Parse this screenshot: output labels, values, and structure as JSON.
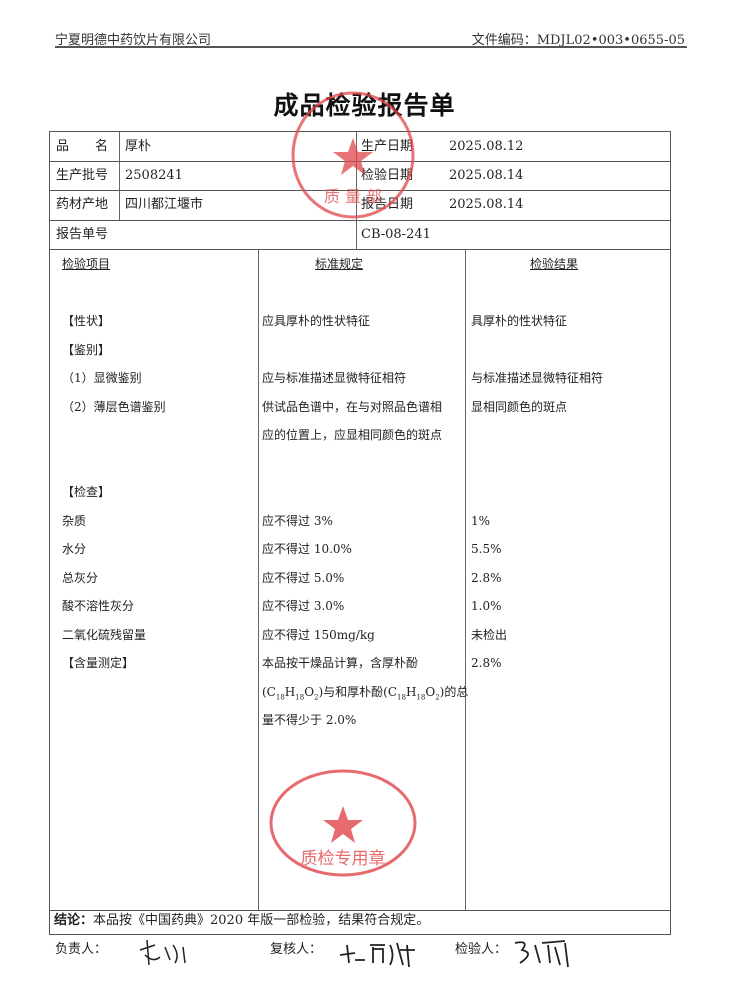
{
  "header": {
    "company": "宁夏明德中药饮片有限公司",
    "doc_code": "文件编码：MDJL02•003•0655-05"
  },
  "title": "成品检验报告单",
  "info": {
    "product_label": "品　　名",
    "product": "厚朴",
    "batch_label": "生产批号",
    "batch": "2508241",
    "origin_label": "药材产地",
    "origin": "四川都江堰市",
    "report_no_label": "报告单号",
    "report_no": "CB-08-241",
    "prod_date_label": "生产日期",
    "prod_date": "2025.08.12",
    "test_date_label": "检验日期",
    "test_date": "2025.08.14",
    "report_date_label": "报告日期",
    "report_date": "2025.08.14"
  },
  "columns": {
    "item": "检验项目",
    "standard": "标准规定",
    "result": "检验结果"
  },
  "rows": [
    {
      "line": 2,
      "item": "【性状】",
      "standard": "应具厚朴的性状特征",
      "result": "具厚朴的性状特征"
    },
    {
      "line": 3,
      "item": "【鉴别】",
      "standard": "",
      "result": ""
    },
    {
      "line": 4,
      "item": "（1）显微鉴别",
      "standard": "应与标准描述显微特征相符",
      "result": "与标准描述显微特征相符"
    },
    {
      "line": 5,
      "item": "（2）薄层色谱鉴别",
      "standard": "供试品色谱中，在与对照品色谱相",
      "result": "显相同颜色的斑点"
    },
    {
      "line": 6,
      "item": "",
      "standard": "应的位置上，应显相同颜色的斑点",
      "result": ""
    },
    {
      "line": 8,
      "item": "【检查】",
      "standard": "",
      "result": ""
    },
    {
      "line": 9,
      "item": "杂质",
      "standard": "应不得过 3%",
      "result": "1%"
    },
    {
      "line": 10,
      "item": "水分",
      "standard": "应不得过 10.0%",
      "result": "5.5%"
    },
    {
      "line": 11,
      "item": "总灰分",
      "standard": "应不得过 5.0%",
      "result": "2.8%"
    },
    {
      "line": 12,
      "item": "酸不溶性灰分",
      "standard": "应不得过 3.0%",
      "result": "1.0%"
    },
    {
      "line": 13,
      "item": "二氧化硫残留量",
      "standard": "应不得过 150mg/kg",
      "result": "未检出"
    },
    {
      "line": 14,
      "item": "【含量测定】",
      "standard": "本品按干燥品计算，含厚朴酚",
      "result": "2.8%"
    },
    {
      "line": 16,
      "item": "",
      "standard": "量不得少于 2.0%",
      "result": ""
    }
  ],
  "formula": {
    "a": "(C",
    "a1": "18",
    "a2": "H",
    "a3": "18",
    "a4": "O",
    "a5": "2",
    "mid": ")与和厚朴酚(C",
    "b1": "18",
    "b2": "H",
    "b3": "18",
    "b4": "O",
    "b5": "2",
    "end": ")的总"
  },
  "stamps": {
    "top": "宁夏明德中药饮片有限公司 质量部",
    "bottom": "宁夏明德中药饮片有限公司 质检专用章"
  },
  "conclusion": {
    "label": "结论：",
    "text": "本品按《中国药典》2020 年版一部检验，结果符合规定。"
  },
  "signatures": {
    "responsible_label": "负责人：",
    "reviewer_label": "复核人：",
    "inspector_label": "检验人："
  },
  "colors": {
    "stamp": "#e0464a"
  }
}
